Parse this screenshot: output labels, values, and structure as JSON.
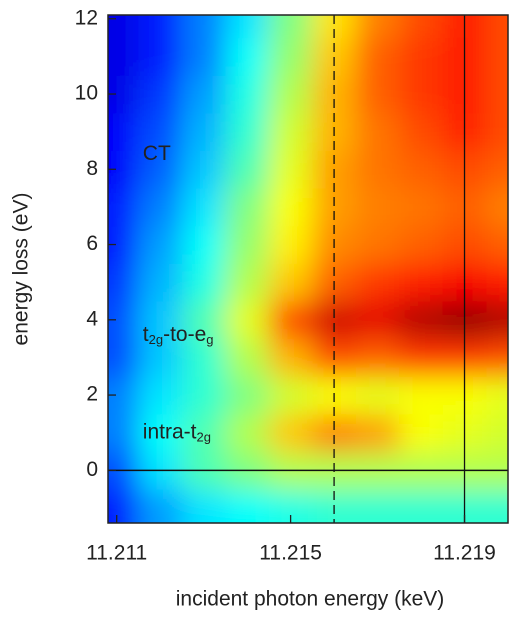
{
  "chart_data": {
    "type": "heatmap",
    "xlabel": "incident photon energy (keV)",
    "ylabel": "energy loss (eV)",
    "xlim": [
      11.2108,
      11.22
    ],
    "ylim": [
      -1.4,
      12.1
    ],
    "xticks": [
      11.211,
      11.215,
      11.219
    ],
    "yticks": [
      0,
      2,
      4,
      6,
      8,
      10,
      12
    ],
    "colormap": "jet",
    "x": [
      11.211,
      11.212,
      11.213,
      11.214,
      11.215,
      11.216,
      11.217,
      11.218,
      11.219,
      11.22
    ],
    "y": [
      -1,
      0,
      1,
      2,
      3,
      4,
      5,
      6,
      7,
      8,
      9,
      10,
      11,
      12
    ],
    "z": [
      [
        0.15,
        0.28,
        0.35,
        0.38,
        0.4,
        0.42,
        0.42,
        0.42,
        0.42,
        0.42
      ],
      [
        0.2,
        0.35,
        0.45,
        0.5,
        0.55,
        0.55,
        0.55,
        0.55,
        0.55,
        0.55
      ],
      [
        0.25,
        0.38,
        0.45,
        0.55,
        0.68,
        0.75,
        0.72,
        0.62,
        0.6,
        0.58
      ],
      [
        0.25,
        0.35,
        0.42,
        0.5,
        0.58,
        0.62,
        0.6,
        0.62,
        0.62,
        0.6
      ],
      [
        0.2,
        0.32,
        0.42,
        0.55,
        0.7,
        0.8,
        0.78,
        0.82,
        0.82,
        0.8
      ],
      [
        0.2,
        0.32,
        0.45,
        0.6,
        0.8,
        0.92,
        0.9,
        0.95,
        0.98,
        0.95
      ],
      [
        0.18,
        0.3,
        0.4,
        0.55,
        0.68,
        0.78,
        0.82,
        0.85,
        0.88,
        0.85
      ],
      [
        0.15,
        0.28,
        0.38,
        0.52,
        0.64,
        0.74,
        0.76,
        0.78,
        0.8,
        0.78
      ],
      [
        0.15,
        0.25,
        0.35,
        0.5,
        0.62,
        0.72,
        0.75,
        0.76,
        0.78,
        0.75
      ],
      [
        0.12,
        0.22,
        0.32,
        0.45,
        0.6,
        0.72,
        0.76,
        0.78,
        0.8,
        0.78
      ],
      [
        0.12,
        0.2,
        0.3,
        0.42,
        0.58,
        0.7,
        0.76,
        0.8,
        0.84,
        0.8
      ],
      [
        0.1,
        0.18,
        0.28,
        0.4,
        0.55,
        0.7,
        0.78,
        0.82,
        0.85,
        0.8
      ],
      [
        0.1,
        0.15,
        0.25,
        0.38,
        0.52,
        0.68,
        0.78,
        0.82,
        0.85,
        0.8
      ],
      [
        0.1,
        0.15,
        0.25,
        0.35,
        0.5,
        0.65,
        0.75,
        0.8,
        0.85,
        0.8
      ]
    ],
    "hlines": [
      0
    ],
    "vlines": [
      {
        "x": 11.216,
        "style": "dashed"
      },
      {
        "x": 11.219,
        "style": "solid"
      }
    ],
    "annotations": [
      {
        "x": 11.2116,
        "y": 8.4,
        "parts": [
          "CT"
        ]
      },
      {
        "x": 11.2116,
        "y": 3.6,
        "parts": [
          "t",
          "2g",
          "-to-e",
          "g"
        ]
      },
      {
        "x": 11.2116,
        "y": 1.0,
        "parts": [
          "intra-t",
          "2g"
        ]
      }
    ]
  }
}
